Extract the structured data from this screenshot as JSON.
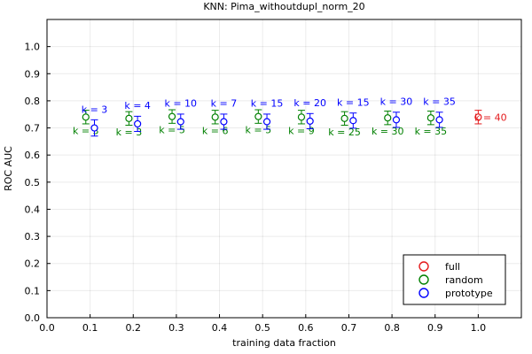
{
  "chart_data": {
    "type": "scatter",
    "title": "KNN: Pima_withoutdupl_norm_20",
    "xlabel": "training data fraction",
    "ylabel": "ROC AUC",
    "xlim": [
      0.0,
      1.1
    ],
    "ylim": [
      0.0,
      1.1
    ],
    "xticks": [
      0.0,
      0.1,
      0.2,
      0.3,
      0.4,
      0.5,
      0.6,
      0.7,
      0.8,
      0.9,
      1.0
    ],
    "xtick_labels": [
      "0.0",
      "0.1",
      "0.2",
      "0.3",
      "0.4",
      "0.5",
      "0.6",
      "0.7",
      "0.8",
      "0.9",
      "1.0"
    ],
    "yticks": [
      0.0,
      0.1,
      0.2,
      0.3,
      0.4,
      0.5,
      0.6,
      0.7,
      0.8,
      0.9,
      1.0
    ],
    "ytick_labels": [
      "0.0",
      "0.1",
      "0.2",
      "0.3",
      "0.4",
      "0.5",
      "0.6",
      "0.7",
      "0.8",
      "0.9",
      "1.0"
    ],
    "grid": true,
    "legend_position": "bottom-right",
    "series": [
      {
        "name": "full",
        "color": "#e41a1c",
        "points": [
          {
            "x": 1.0,
            "y": 0.74,
            "err": 0.025,
            "label": "k = 40"
          }
        ]
      },
      {
        "name": "random",
        "color": "#008000",
        "points": [
          {
            "x": 0.09,
            "y": 0.74,
            "err": 0.025,
            "label": "k = 3"
          },
          {
            "x": 0.19,
            "y": 0.735,
            "err": 0.025,
            "label": "k = 3"
          },
          {
            "x": 0.29,
            "y": 0.742,
            "err": 0.025,
            "label": "k = 5"
          },
          {
            "x": 0.39,
            "y": 0.74,
            "err": 0.025,
            "label": "k = 6"
          },
          {
            "x": 0.49,
            "y": 0.742,
            "err": 0.025,
            "label": "k = 5"
          },
          {
            "x": 0.59,
            "y": 0.74,
            "err": 0.025,
            "label": "k = 9"
          },
          {
            "x": 0.69,
            "y": 0.735,
            "err": 0.025,
            "label": "k = 25"
          },
          {
            "x": 0.79,
            "y": 0.737,
            "err": 0.025,
            "label": "k = 30"
          },
          {
            "x": 0.89,
            "y": 0.737,
            "err": 0.025,
            "label": "k = 35"
          }
        ]
      },
      {
        "name": "prototype",
        "color": "#0000ff",
        "points": [
          {
            "x": 0.11,
            "y": 0.7,
            "err": 0.03,
            "label": "k = 3"
          },
          {
            "x": 0.21,
            "y": 0.715,
            "err": 0.028,
            "label": "k = 4"
          },
          {
            "x": 0.31,
            "y": 0.723,
            "err": 0.028,
            "label": "k = 10"
          },
          {
            "x": 0.41,
            "y": 0.723,
            "err": 0.028,
            "label": "k = 7"
          },
          {
            "x": 0.51,
            "y": 0.723,
            "err": 0.028,
            "label": "k = 15"
          },
          {
            "x": 0.61,
            "y": 0.725,
            "err": 0.028,
            "label": "k = 20"
          },
          {
            "x": 0.71,
            "y": 0.727,
            "err": 0.028,
            "label": "k = 15"
          },
          {
            "x": 0.81,
            "y": 0.73,
            "err": 0.028,
            "label": "k = 30"
          },
          {
            "x": 0.91,
            "y": 0.73,
            "err": 0.028,
            "label": "k = 35"
          }
        ]
      }
    ]
  }
}
